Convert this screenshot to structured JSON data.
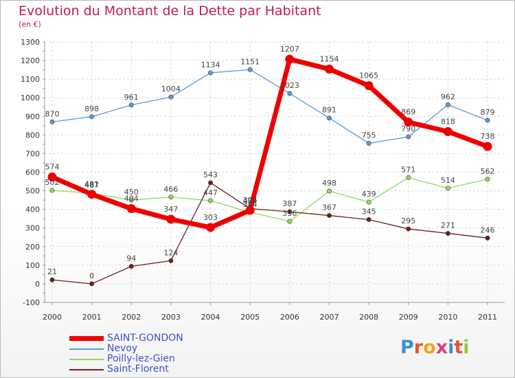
{
  "title": "Evolution du Montant de la Dette par Habitant",
  "subtitle": "(en €)",
  "logo": {
    "text": "Proxiti",
    "letter_colors": [
      "#3f8ed8",
      "#e8532c",
      "#f2a51a",
      "#e03a8a",
      "#3f8ed8",
      "#e8532c",
      "#9bc53d"
    ]
  },
  "chart_data": {
    "type": "line",
    "x": [
      "2000",
      "2001",
      "2002",
      "2003",
      "2004",
      "2005",
      "2006",
      "2007",
      "2008",
      "2009",
      "2010",
      "2011"
    ],
    "ylim": [
      -100,
      1300
    ],
    "yticks": [
      "-100",
      "0",
      "100",
      "200",
      "300",
      "400",
      "500",
      "600",
      "700",
      "800",
      "900",
      "1000",
      "1100",
      "1200",
      "1300"
    ],
    "grid": true,
    "legend_position": "bottom-left",
    "series": [
      {
        "name": "Nevoy",
        "color": "#5b9bd5",
        "values": [
          870,
          898,
          961,
          1004,
          1134,
          1151,
          1023,
          891,
          755,
          790,
          962,
          879
        ],
        "labels": [
          "870",
          "898",
          "961",
          "1004",
          "1134",
          "1151",
          "1023",
          "891",
          "755",
          "790",
          "962",
          "879"
        ]
      },
      {
        "name": "Poilly-lez-Gien",
        "color": "#8fd95a",
        "values": [
          502,
          487,
          450,
          466,
          447,
          384,
          336,
          498,
          439,
          571,
          514,
          562
        ],
        "labels": [
          "502",
          "487",
          "450",
          "466",
          "447",
          "384",
          "336",
          "498",
          "439",
          "571",
          "514",
          "562"
        ]
      },
      {
        "name": "Saint-Florent",
        "color": "#6b1f1f",
        "values": [
          21,
          0,
          94,
          124,
          543,
          404,
          387,
          367,
          345,
          295,
          271,
          246
        ],
        "labels": [
          "21",
          "0",
          "94",
          "124",
          "543",
          "404",
          "387",
          "367",
          "345",
          "295",
          "271",
          "246"
        ]
      },
      {
        "name": "SAINT-GONDON",
        "color": "#ee0000",
        "values": [
          574,
          481,
          404,
          347,
          303,
          395,
          1207,
          1154,
          1065,
          869,
          818,
          738
        ],
        "labels": [
          "574",
          "481",
          "404",
          "347",
          "303",
          "395",
          "1207",
          "1154",
          "1065",
          "869",
          "818",
          "738"
        ]
      }
    ],
    "legend_order": [
      "SAINT-GONDON",
      "Nevoy",
      "Poilly-lez-Gien",
      "Saint-Florent"
    ]
  }
}
